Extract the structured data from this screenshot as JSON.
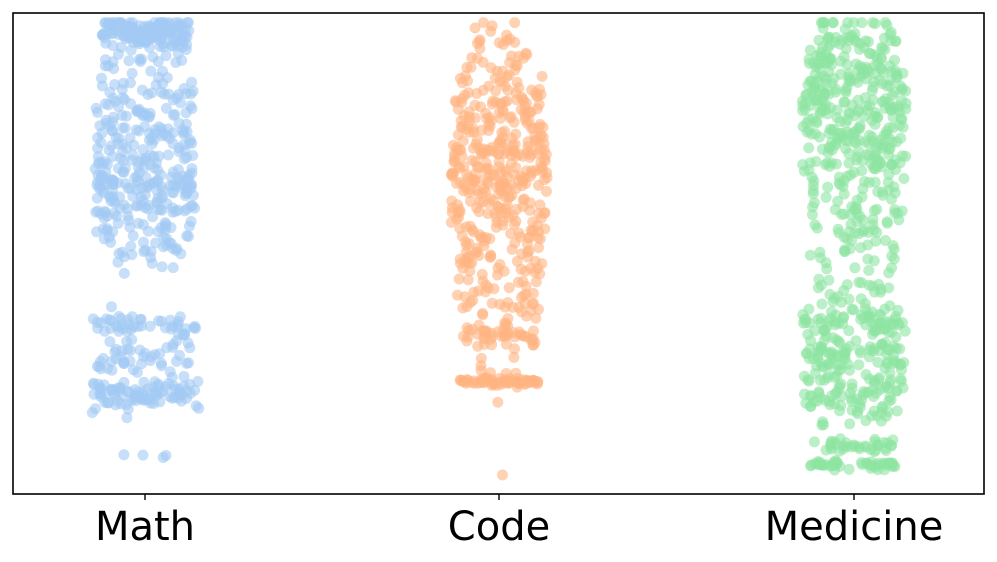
{
  "chart_data": {
    "type": "scatter",
    "title": "",
    "xlabel": "",
    "ylabel": "",
    "categories": [
      "Math",
      "Code",
      "Medicine"
    ],
    "y_axis_ticks_shown": false,
    "ylim": [
      0,
      1
    ],
    "grid": false,
    "legend": "none",
    "point_alpha": 0.6,
    "series": [
      {
        "category": "Math",
        "color": "#a1c9f4",
        "clusters": [
          {
            "y": 0.96,
            "n": 150,
            "spread": 0.018,
            "jitter": 0.22
          },
          {
            "y": 0.9,
            "n": 20,
            "spread": 0.015,
            "jitter": 0.2
          },
          {
            "y": 0.82,
            "n": 45,
            "spread": 0.03,
            "jitter": 0.25
          },
          {
            "y": 0.75,
            "n": 70,
            "spread": 0.03,
            "jitter": 0.25
          },
          {
            "y": 0.67,
            "n": 90,
            "spread": 0.035,
            "jitter": 0.25
          },
          {
            "y": 0.6,
            "n": 75,
            "spread": 0.03,
            "jitter": 0.25
          },
          {
            "y": 0.52,
            "n": 40,
            "spread": 0.03,
            "jitter": 0.22
          },
          {
            "y": 0.35,
            "n": 45,
            "spread": 0.012,
            "jitter": 0.26
          },
          {
            "y": 0.28,
            "n": 45,
            "spread": 0.025,
            "jitter": 0.24
          },
          {
            "y": 0.21,
            "n": 90,
            "spread": 0.018,
            "jitter": 0.27
          },
          {
            "y": 0.08,
            "n": 4,
            "spread": 0.002,
            "jitter": 0.14
          }
        ]
      },
      {
        "category": "Code",
        "color": "#ffb482",
        "clusters": [
          {
            "y": 0.91,
            "n": 35,
            "spread": 0.04,
            "jitter": 0.14
          },
          {
            "y": 0.79,
            "n": 90,
            "spread": 0.04,
            "jitter": 0.22
          },
          {
            "y": 0.7,
            "n": 110,
            "spread": 0.035,
            "jitter": 0.24
          },
          {
            "y": 0.61,
            "n": 95,
            "spread": 0.04,
            "jitter": 0.24
          },
          {
            "y": 0.5,
            "n": 70,
            "spread": 0.045,
            "jitter": 0.22
          },
          {
            "y": 0.4,
            "n": 50,
            "spread": 0.04,
            "jitter": 0.2
          },
          {
            "y": 0.33,
            "n": 35,
            "spread": 0.012,
            "jitter": 0.18
          },
          {
            "y": 0.25,
            "n": 15,
            "spread": 0.03,
            "jitter": 0.1
          },
          {
            "y": 0.233,
            "n": 60,
            "spread": 0.003,
            "jitter": 0.21
          },
          {
            "y": 0.19,
            "n": 1,
            "spread": 0.002,
            "jitter": 0.02
          },
          {
            "y": 0.04,
            "n": 1,
            "spread": 0.002,
            "jitter": 0.02
          }
        ]
      },
      {
        "category": "Medicine",
        "color": "#8de5a1",
        "clusters": [
          {
            "y": 0.92,
            "n": 90,
            "spread": 0.04,
            "jitter": 0.22
          },
          {
            "y": 0.82,
            "n": 150,
            "spread": 0.05,
            "jitter": 0.26
          },
          {
            "y": 0.7,
            "n": 110,
            "spread": 0.05,
            "jitter": 0.26
          },
          {
            "y": 0.56,
            "n": 70,
            "spread": 0.05,
            "jitter": 0.22
          },
          {
            "y": 0.43,
            "n": 35,
            "spread": 0.03,
            "jitter": 0.18
          },
          {
            "y": 0.36,
            "n": 60,
            "spread": 0.015,
            "jitter": 0.26
          },
          {
            "y": 0.3,
            "n": 55,
            "spread": 0.02,
            "jitter": 0.24
          },
          {
            "y": 0.24,
            "n": 70,
            "spread": 0.03,
            "jitter": 0.25
          },
          {
            "y": 0.19,
            "n": 45,
            "spread": 0.025,
            "jitter": 0.22
          },
          {
            "y": 0.1,
            "n": 35,
            "spread": 0.008,
            "jitter": 0.2
          },
          {
            "y": 0.06,
            "n": 45,
            "spread": 0.004,
            "jitter": 0.22
          }
        ]
      }
    ]
  }
}
